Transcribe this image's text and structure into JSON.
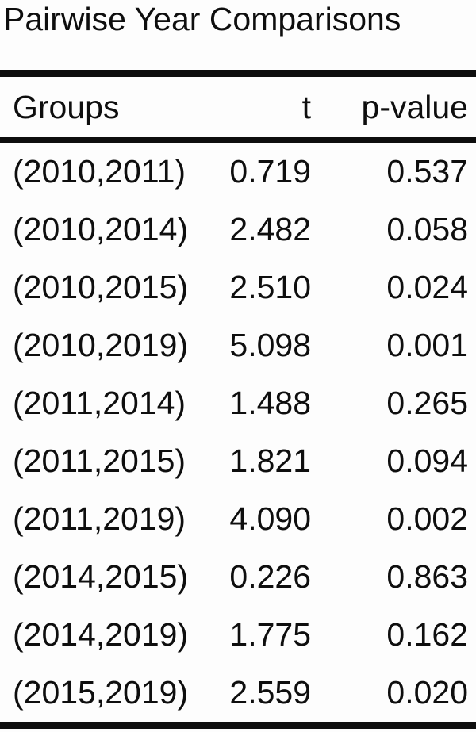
{
  "title": "Pairwise Year Comparisons",
  "table": {
    "columns": {
      "groups": "Groups",
      "t": "t",
      "p": "p-value"
    },
    "rows": [
      {
        "group": "(2010,2011)",
        "t": "0.719",
        "p": "0.537"
      },
      {
        "group": "(2010,2014)",
        "t": "2.482",
        "p": "0.058"
      },
      {
        "group": "(2010,2015)",
        "t": "2.510",
        "p": "0.024"
      },
      {
        "group": "(2010,2019)",
        "t": "5.098",
        "p": "0.001"
      },
      {
        "group": "(2011,2014)",
        "t": "1.488",
        "p": "0.265"
      },
      {
        "group": "(2011,2015)",
        "t": "1.821",
        "p": "0.094"
      },
      {
        "group": "(2011,2019)",
        "t": "4.090",
        "p": "0.002"
      },
      {
        "group": "(2014,2015)",
        "t": "0.226",
        "p": "0.863"
      },
      {
        "group": "(2014,2019)",
        "t": "1.775",
        "p": "0.162"
      },
      {
        "group": "(2015,2019)",
        "t": "2.559",
        "p": "0.020"
      }
    ]
  },
  "chart_data": {
    "type": "table",
    "title": "Pairwise Year Comparisons",
    "columns": [
      "Groups",
      "t",
      "p-value"
    ],
    "rows": [
      [
        "(2010,2011)",
        0.719,
        0.537
      ],
      [
        "(2010,2014)",
        2.482,
        0.058
      ],
      [
        "(2010,2015)",
        2.51,
        0.024
      ],
      [
        "(2010,2019)",
        5.098,
        0.001
      ],
      [
        "(2011,2014)",
        1.488,
        0.265
      ],
      [
        "(2011,2015)",
        1.821,
        0.094
      ],
      [
        "(2011,2019)",
        4.09,
        0.002
      ],
      [
        "(2014,2015)",
        0.226,
        0.863
      ],
      [
        "(2014,2019)",
        1.775,
        0.162
      ],
      [
        "(2015,2019)",
        2.559,
        0.02
      ]
    ]
  },
  "colors": {
    "text": "#0e0e0e",
    "background": "#fdfdfd",
    "rule": "#0e0e0e"
  }
}
